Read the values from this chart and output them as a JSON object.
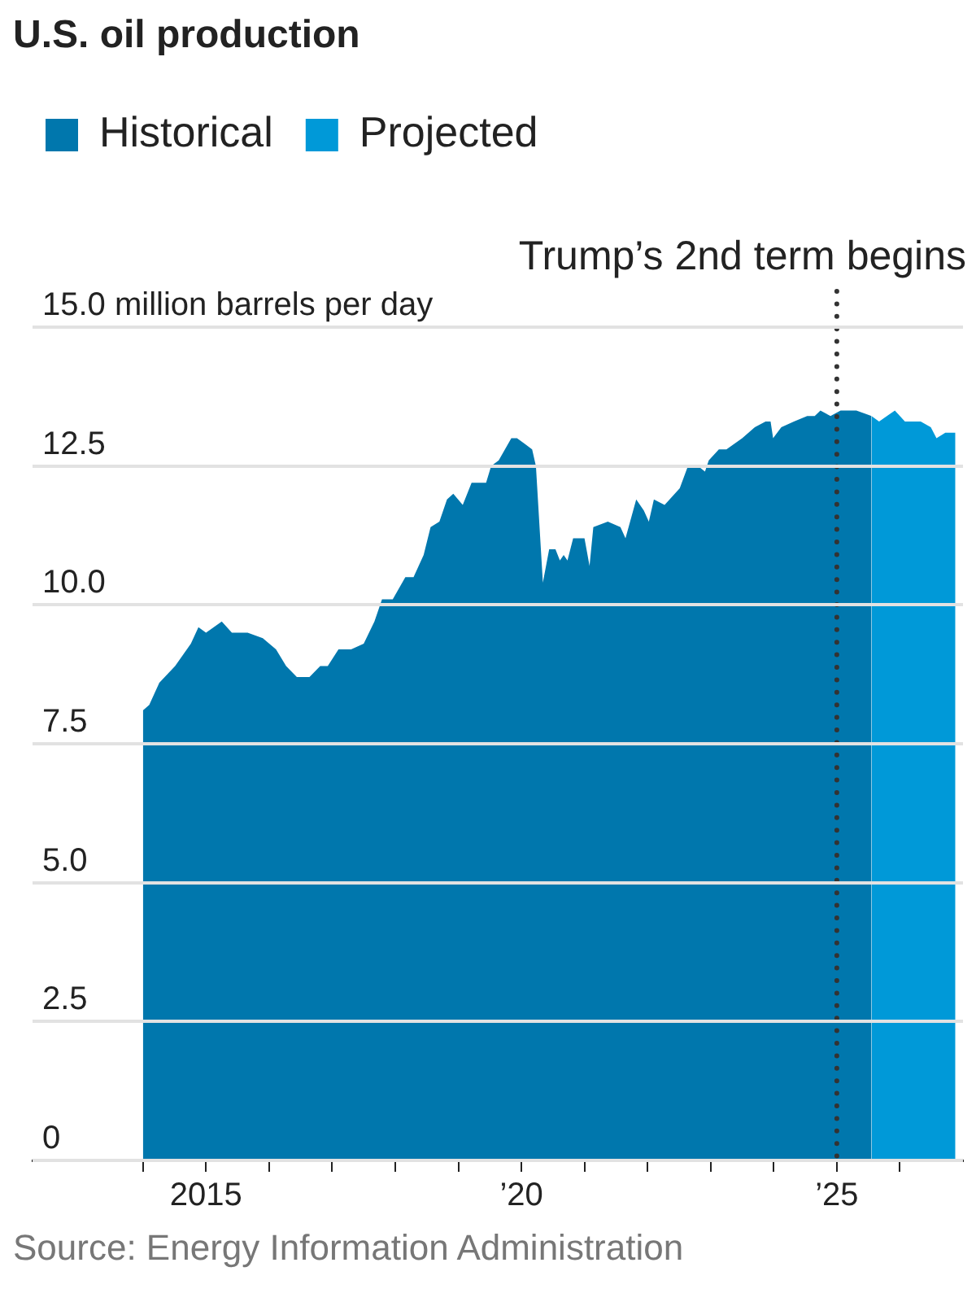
{
  "chart_data": {
    "type": "area",
    "title": "U.S. oil production",
    "series": [
      {
        "name": "Historical",
        "color": "#0077ad",
        "x": [
          2014.0,
          2014.1,
          2014.26,
          2014.51,
          2014.76,
          2014.88,
          2015.0,
          2015.25,
          2015.41,
          2015.66,
          2015.9,
          2016.11,
          2016.27,
          2016.44,
          2016.64,
          2016.81,
          2016.93,
          2017.1,
          2017.3,
          2017.5,
          2017.67,
          2017.79,
          2017.96,
          2018.16,
          2018.29,
          2018.45,
          2018.56,
          2018.7,
          2018.82,
          2018.92,
          2019.07,
          2019.21,
          2019.44,
          2019.52,
          2019.64,
          2019.84,
          2019.93,
          2020.05,
          2020.17,
          2020.23,
          2020.34,
          2020.44,
          2020.54,
          2020.61,
          2020.67,
          2020.73,
          2020.82,
          2021.0,
          2021.08,
          2021.14,
          2021.37,
          2021.57,
          2021.65,
          2021.82,
          2021.94,
          2022.02,
          2022.1,
          2022.27,
          2022.51,
          2022.64,
          2022.8,
          2022.91,
          2022.97,
          2023.13,
          2023.25,
          2023.5,
          2023.7,
          2023.87,
          2023.95,
          2023.99,
          2024.12,
          2024.32,
          2024.53,
          2024.65,
          2024.74,
          2024.9,
          2025.06,
          2025.31,
          2025.55
        ],
        "values": [
          8.1,
          8.2,
          8.6,
          8.9,
          9.3,
          9.6,
          9.5,
          9.7,
          9.5,
          9.5,
          9.4,
          9.2,
          8.9,
          8.7,
          8.7,
          8.9,
          8.9,
          9.2,
          9.2,
          9.3,
          9.7,
          10.1,
          10.1,
          10.5,
          10.5,
          10.9,
          11.4,
          11.5,
          11.9,
          12.0,
          11.8,
          12.2,
          12.2,
          12.5,
          12.6,
          13.0,
          13.0,
          12.9,
          12.8,
          12.5,
          10.4,
          11.0,
          11.0,
          10.8,
          10.9,
          10.8,
          11.2,
          11.2,
          10.7,
          11.4,
          11.5,
          11.4,
          11.2,
          11.9,
          11.7,
          11.5,
          11.9,
          11.8,
          12.1,
          12.5,
          12.5,
          12.4,
          12.6,
          12.8,
          12.8,
          13.0,
          13.2,
          13.3,
          13.3,
          13.0,
          13.2,
          13.3,
          13.4,
          13.4,
          13.5,
          13.4,
          13.5,
          13.5,
          13.4
        ]
      },
      {
        "name": "Projected",
        "color": "#0099d8",
        "x": [
          2025.55,
          2025.67,
          2025.92,
          2026.08,
          2026.33,
          2026.49,
          2026.58,
          2026.72,
          2026.88
        ],
        "values": [
          13.4,
          13.3,
          13.5,
          13.3,
          13.3,
          13.2,
          13.0,
          13.1,
          13.1
        ]
      }
    ],
    "xlim": [
      2012.25,
      2027
    ],
    "xticks": [
      {
        "value": 2014,
        "label": null
      },
      {
        "value": 2015,
        "label": "2015"
      },
      {
        "value": 2016,
        "label": null
      },
      {
        "value": 2017,
        "label": null
      },
      {
        "value": 2018,
        "label": null
      },
      {
        "value": 2019,
        "label": null
      },
      {
        "value": 2020,
        "label": "’20"
      },
      {
        "value": 2021,
        "label": null
      },
      {
        "value": 2022,
        "label": null
      },
      {
        "value": 2023,
        "label": null
      },
      {
        "value": 2024,
        "label": null
      },
      {
        "value": 2025,
        "label": "’25"
      },
      {
        "value": 2026,
        "label": null
      }
    ],
    "ylim": [
      0,
      15
    ],
    "yticks": [
      0,
      2.5,
      {
        "value": 5,
        "label": "5.0"
      },
      7.5,
      {
        "value": 10,
        "label": "10.0"
      },
      12.5,
      {
        "value": 15,
        "label": "15.0 million barrels per day"
      }
    ],
    "grid": "y",
    "legend": "top left",
    "ref_lines": [
      {
        "axis": "x",
        "value": 2025,
        "label": "Trump’s 2nd term begins",
        "color": "#333333",
        "line_style": "dotted"
      }
    ],
    "annotations": [
      "Source: Energy Information Administration"
    ]
  }
}
